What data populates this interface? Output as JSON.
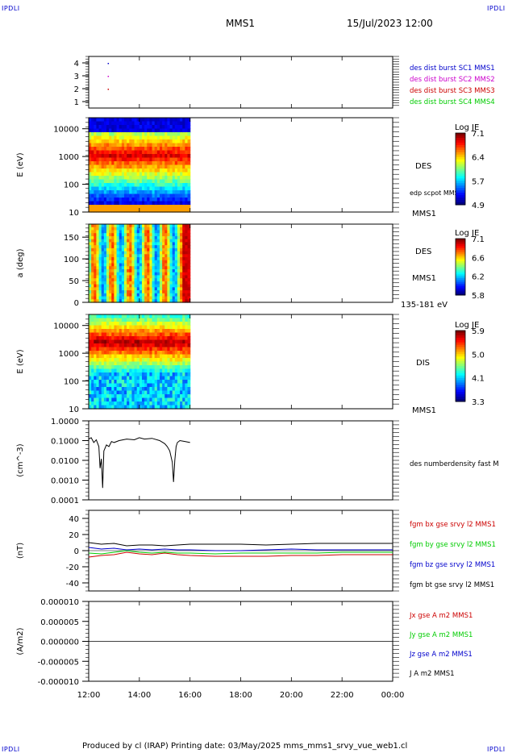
{
  "corner_tag": "IPDLI",
  "header": {
    "spacecraft": "MMS1",
    "datetime": "15/Jul/2023 12:00"
  },
  "footer": "Produced by cl (IRAP)   Printing date: 03/May/2025   mms_mms1_srvy_vue_web1.cl",
  "time_axis": {
    "ticks": [
      "12:00",
      "14:00",
      "16:00",
      "18:00",
      "20:00",
      "22:00",
      "00:00"
    ],
    "data_end_hours": 4.0
  },
  "colors": {
    "red": "#cc0000",
    "green": "#00cc00",
    "blue": "#0000cc",
    "magenta": "#cc00cc",
    "black": "#000000"
  },
  "chart_data": [
    {
      "id": "burst",
      "type": "scatter",
      "yticks": [
        "4",
        "3",
        "2",
        "1"
      ],
      "ylim": [
        0.5,
        4.5
      ],
      "labels": [
        {
          "text": "des dist burst SC1 MMS1",
          "color": "#0000cc"
        },
        {
          "text": "des dist burst SC2 MMS2",
          "color": "#cc00cc"
        },
        {
          "text": "des dist burst SC3 MMS3",
          "color": "#cc0000"
        },
        {
          "text": "des dist burst SC4 MMS4",
          "color": "#00cc00"
        }
      ],
      "points": [
        {
          "x_h": 0.75,
          "y": 4
        },
        {
          "x_h": 0.75,
          "y": 3
        },
        {
          "x_h": 0.75,
          "y": 2
        }
      ]
    },
    {
      "id": "des_energy",
      "type": "heatmap",
      "ylabel": "E (eV)",
      "yticks": [
        "10000",
        "1000",
        "100",
        "10"
      ],
      "yscale": "log",
      "ylim": [
        10,
        25000
      ],
      "instrument": "DES",
      "side_label": "edp scpot MMS1",
      "bottom_label": "MMS1",
      "colorbar": {
        "title": "Log JE",
        "ticks": [
          "7.1",
          "6.4",
          "5.7",
          "4.9"
        ]
      }
    },
    {
      "id": "des_pitch",
      "type": "heatmap",
      "ylabel": "a (deg)",
      "yticks": [
        "150",
        "100",
        "50",
        "0"
      ],
      "ylim": [
        0,
        180
      ],
      "instrument": "DES",
      "side_label": "MMS1",
      "bottom_label": "135-181 eV",
      "colorbar": {
        "title": "Log JE",
        "ticks": [
          "7.1",
          "6.6",
          "6.2",
          "5.8"
        ]
      }
    },
    {
      "id": "dis_energy",
      "type": "heatmap",
      "ylabel": "E (eV)",
      "yticks": [
        "10000",
        "1000",
        "100",
        "10"
      ],
      "yscale": "log",
      "ylim": [
        10,
        25000
      ],
      "instrument": "DIS",
      "bottom_label": "MMS1",
      "colorbar": {
        "title": "Log JE",
        "ticks": [
          "5.9",
          "5.0",
          "4.1",
          "3.3"
        ]
      }
    },
    {
      "id": "density",
      "type": "line",
      "ylabel": "(cm^-3)",
      "yticks": [
        "1.0000",
        "0.1000",
        "0.0100",
        "0.0010",
        "0.0001"
      ],
      "yscale": "log",
      "ylim": [
        0.0001,
        1.0
      ],
      "legend": "des numberdensity fast M",
      "series": [
        {
          "x_h": [
            0.0,
            0.1,
            0.2,
            0.3,
            0.4,
            0.45,
            0.5,
            0.55,
            0.6,
            0.7,
            0.8,
            0.9,
            1.0,
            1.2,
            1.5,
            1.8,
            2.0,
            2.2,
            2.5,
            2.8,
            3.0,
            3.1,
            3.2,
            3.3,
            3.35,
            3.4,
            3.45,
            3.5,
            3.6,
            3.8,
            4.0
          ],
          "y": [
            0.12,
            0.14,
            0.08,
            0.11,
            0.05,
            0.004,
            0.012,
            0.0004,
            0.03,
            0.06,
            0.05,
            0.09,
            0.08,
            0.1,
            0.12,
            0.11,
            0.14,
            0.12,
            0.13,
            0.1,
            0.07,
            0.05,
            0.03,
            0.008,
            0.0008,
            0.01,
            0.05,
            0.08,
            0.1,
            0.09,
            0.08
          ]
        }
      ]
    },
    {
      "id": "bfield",
      "type": "line",
      "ylabel": "(nT)",
      "yticks": [
        "40",
        "20",
        "0",
        "-20",
        "-40"
      ],
      "ylim": [
        -50,
        50
      ],
      "x_h": [
        0,
        0.5,
        1,
        1.5,
        2,
        2.5,
        3,
        3.5,
        4,
        5,
        6,
        7,
        8,
        9,
        10,
        11,
        12
      ],
      "series": [
        {
          "name": "fgm bx gse srvy l2 MMS1",
          "color": "#cc0000",
          "values": [
            -8,
            -6,
            -5,
            -2,
            -4,
            -5,
            -3,
            -5,
            -6,
            -7,
            -7,
            -7,
            -6,
            -6,
            -5,
            -5,
            -5
          ]
        },
        {
          "name": "fgm by gse srvy l2 MMS1",
          "color": "#00cc00",
          "values": [
            -3,
            -4,
            -2,
            0,
            -2,
            -3,
            -2,
            -3,
            -3,
            -4,
            -3,
            -3,
            -3,
            -3,
            -2,
            -2,
            -2
          ]
        },
        {
          "name": "fgm bz gse srvy l2 MMS1",
          "color": "#0000cc",
          "values": [
            4,
            2,
            3,
            1,
            2,
            1,
            2,
            1,
            1,
            0,
            0,
            1,
            2,
            1,
            1,
            1,
            1
          ]
        },
        {
          "name": "fgm bt gse srvy l2 MMS1",
          "color": "#000000",
          "values": [
            10,
            8,
            9,
            6,
            7,
            7,
            6,
            7,
            8,
            8,
            8,
            7,
            8,
            9,
            9,
            9,
            9
          ]
        }
      ]
    },
    {
      "id": "current",
      "type": "line",
      "ylabel": "(A/m2)",
      "yticks": [
        "0.000010",
        "0.000005",
        "0.000000",
        "-0.000005",
        "-0.000010"
      ],
      "ylim": [
        -1e-05,
        1e-05
      ],
      "series": [
        {
          "name": "Jx gse A m2 MMS1",
          "color": "#cc0000"
        },
        {
          "name": "Jy gse A m2 MMS1",
          "color": "#00cc00"
        },
        {
          "name": "Jz gse A m2 MMS1",
          "color": "#0000cc"
        },
        {
          "name": "J A m2 MMS1",
          "color": "#000000"
        }
      ]
    }
  ]
}
